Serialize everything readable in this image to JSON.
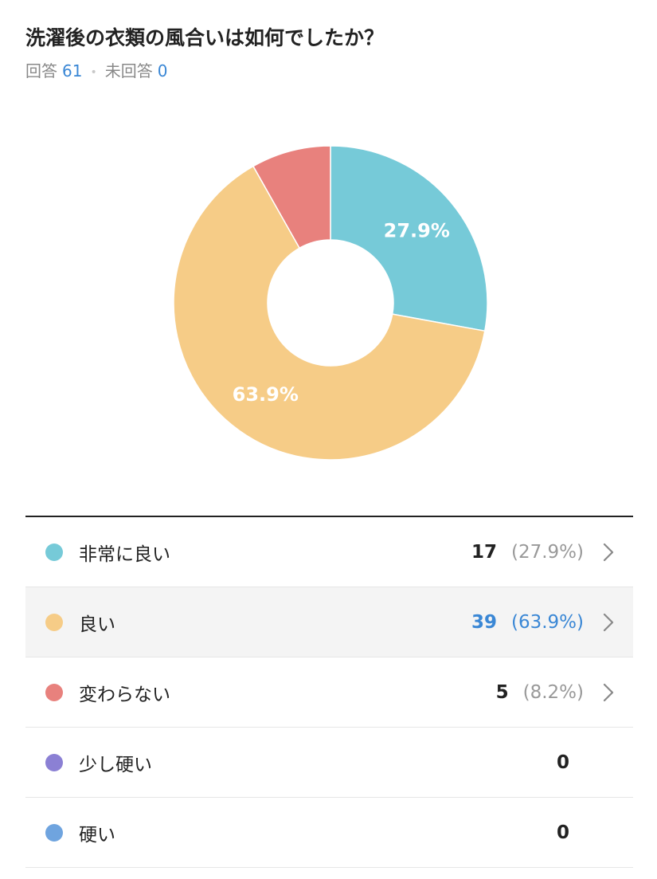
{
  "question": "洗濯後の衣類の風合いは如何でしたか？",
  "summary": {
    "answered_label": "回答",
    "answered_count": "61",
    "separator": "•",
    "unanswered_label": "未回答",
    "unanswered_count": "0"
  },
  "chart_data": {
    "type": "pie",
    "donut": true,
    "categories": [
      "非常に良い",
      "良い",
      "変わらない",
      "少し硬い",
      "硬い"
    ],
    "values": [
      17,
      39,
      5,
      0,
      0
    ],
    "percent_labels": [
      "27.9%",
      "63.9%",
      "8.2%",
      "0",
      "0"
    ],
    "slice_labels_shown": [
      "27.9%",
      "63.9%"
    ],
    "colors": [
      "#76cad8",
      "#f6cc87",
      "#e8817d",
      "#8b80d4",
      "#6fa4df"
    ],
    "start_angle": "top",
    "direction": "clockwise"
  },
  "legend": {
    "items": [
      {
        "label": "非常に良い",
        "count": "17",
        "pct": "(27.9%)",
        "color": "#76cad8",
        "active": false,
        "has_chevron": true
      },
      {
        "label": "良い",
        "count": "39",
        "pct": "(63.9%)",
        "color": "#f6cc87",
        "active": true,
        "has_chevron": true
      },
      {
        "label": "変わらない",
        "count": "5",
        "pct": "(8.2%)",
        "color": "#e8817d",
        "active": false,
        "has_chevron": true
      },
      {
        "label": "少し硬い",
        "count": "0",
        "pct": "",
        "color": "#8b80d4",
        "active": false,
        "has_chevron": false
      },
      {
        "label": "硬い",
        "count": "0",
        "pct": "",
        "color": "#6fa4df",
        "active": false,
        "has_chevron": false
      }
    ],
    "chevron_icon": "chevron-right-icon",
    "active_color": "#3a87d5"
  }
}
